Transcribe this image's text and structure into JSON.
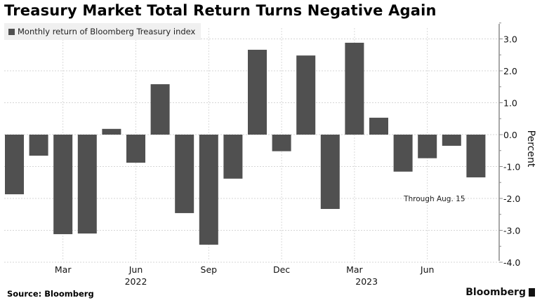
{
  "chart_data": {
    "type": "bar",
    "title": "Treasury Market Total Return Turns Negative Again",
    "legend": [
      "Monthly return of Bloomberg Treasury index"
    ],
    "legend_position": "top-left",
    "ylabel": "Percent",
    "xlabel": "",
    "y_axis_side": "right",
    "ylim": [
      -4.0,
      3.0
    ],
    "y_ticks": [
      "3.0",
      "2.0",
      "1.0",
      "0.0",
      "-1.0",
      "-2.0",
      "-3.0",
      "-4.0"
    ],
    "y_tick_values": [
      3,
      2,
      1,
      0,
      -1,
      -2,
      -3,
      -4
    ],
    "grid": true,
    "categories": [
      "2022-01",
      "2022-02",
      "2022-03",
      "2022-04",
      "2022-05",
      "2022-06",
      "2022-07",
      "2022-08",
      "2022-09",
      "2022-10",
      "2022-11",
      "2022-12",
      "2023-01",
      "2023-02",
      "2023-03",
      "2023-04",
      "2023-05",
      "2023-06",
      "2023-07",
      "2023-08"
    ],
    "series": [
      {
        "name": "Monthly return of Bloomberg Treasury index",
        "color": "#505050",
        "values": [
          -1.87,
          -0.66,
          -3.12,
          -3.1,
          0.18,
          -0.88,
          1.58,
          -2.46,
          -3.45,
          -1.38,
          2.66,
          -0.52,
          2.48,
          -2.33,
          2.88,
          0.53,
          -1.16,
          -0.74,
          -0.35,
          -1.34
        ]
      }
    ],
    "x_ticks": [
      {
        "label": "Mar",
        "index": 2
      },
      {
        "label": "Jun",
        "index": 5
      },
      {
        "label": "Sep",
        "index": 8
      },
      {
        "label": "Dec",
        "index": 11
      },
      {
        "label": "Mar",
        "index": 14
      },
      {
        "label": "Jun",
        "index": 17
      }
    ],
    "x_years": [
      {
        "label": "2022",
        "index": 5
      },
      {
        "label": "2023",
        "index": 14.5
      }
    ],
    "annotations": [
      {
        "text": "Through Aug. 15",
        "x_index": 17.3,
        "y": -2.0
      }
    ]
  },
  "footer": {
    "source": "Source: Bloomberg",
    "brand": "Bloomberg"
  }
}
